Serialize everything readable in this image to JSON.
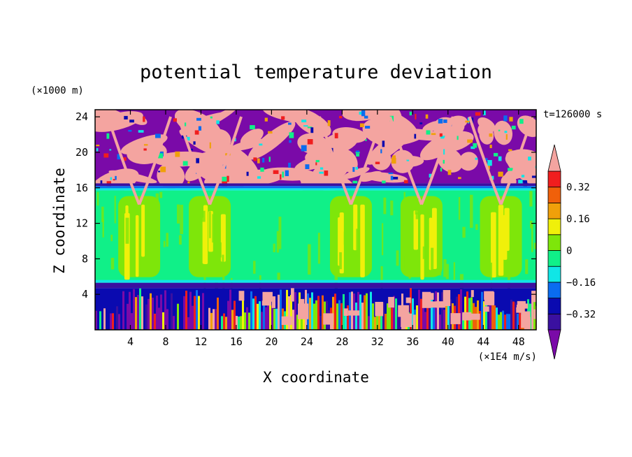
{
  "chart_data": {
    "type": "heatmap",
    "title": "potential temperature deviation",
    "xlabel": "X coordinate",
    "ylabel": "Z coordinate",
    "x_unit": "(×1E4 m/s)",
    "y_unit": "(×1000 m)",
    "time_label": "t=126000 s",
    "x_ticks": [
      4,
      8,
      12,
      16,
      20,
      24,
      28,
      32,
      36,
      40,
      44,
      48
    ],
    "y_ticks": [
      4,
      8,
      12,
      16,
      20,
      24
    ],
    "xlim": [
      0,
      50
    ],
    "ylim": [
      0,
      24.8
    ],
    "colorbar": {
      "levels": [
        -0.4,
        -0.32,
        -0.24,
        -0.16,
        -0.08,
        0,
        0.08,
        0.16,
        0.24,
        0.32,
        0.4
      ],
      "tick_labels": [
        "0.32",
        "0.16",
        "0",
        "−0.16",
        "−0.32"
      ],
      "tick_values": [
        0.32,
        0.16,
        0,
        -0.16,
        -0.32
      ],
      "colors": [
        "#7a0aa8",
        "#3a10a0",
        "#0a0ab0",
        "#0a6cf0",
        "#10e6e6",
        "#10f088",
        "#7ee60a",
        "#f0f00a",
        "#f0a00a",
        "#f0600a",
        "#f01e1e",
        "#f4a4a0"
      ],
      "extend": "both"
    },
    "layers": [
      {
        "z_range": [
          16.5,
          24.8
        ],
        "pattern": "mixed",
        "dominant": [
          "#7a0aa8",
          "#f4a4a0"
        ]
      },
      {
        "z_range": [
          16.2,
          16.5
        ],
        "value": -0.4
      },
      {
        "z_range": [
          15.7,
          16.2
        ],
        "value": -0.12
      },
      {
        "z_range": [
          5.3,
          15.7
        ],
        "value": 0.02,
        "plumes_x": [
          5,
          13,
          29,
          37,
          46
        ]
      },
      {
        "z_range": [
          4.7,
          5.3
        ],
        "value": -0.3
      },
      {
        "z_range": [
          0,
          4.7
        ],
        "pattern": "turbulent"
      }
    ]
  }
}
